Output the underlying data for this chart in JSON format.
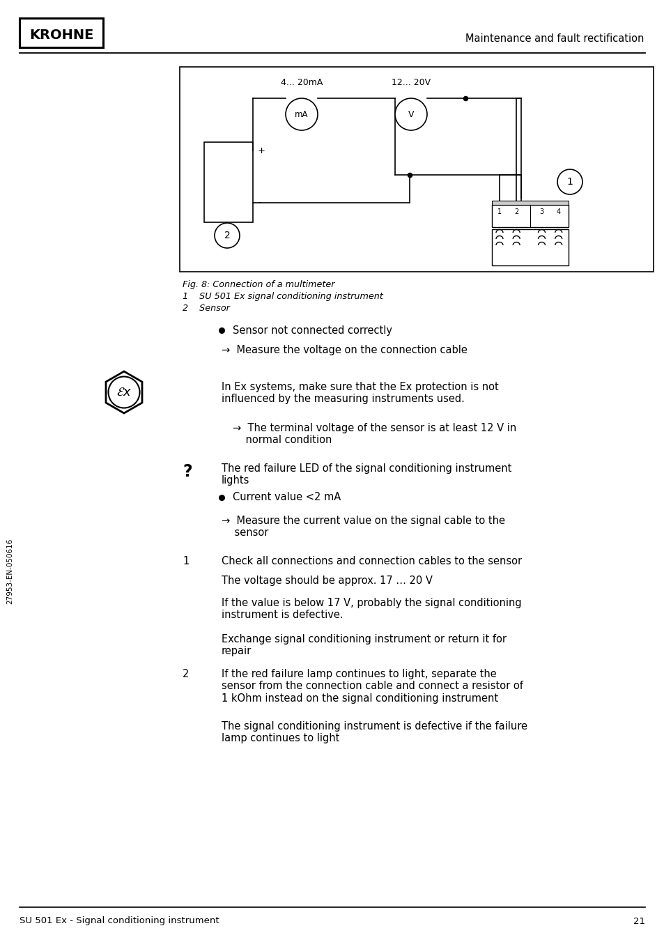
{
  "page_bg": "#ffffff",
  "header_logo_text": "KROHNE",
  "header_right_text": "Maintenance and fault rectification",
  "footer_left_text": "SU 501 Ex - Signal conditioning instrument",
  "footer_right_text": "21",
  "side_text": "27953-EN-050616",
  "fig_caption_line1": "Fig. 8: Connection of a multimeter",
  "fig_caption_line2": "1    SU 501 Ex signal conditioning instrument",
  "fig_caption_line3": "2    Sensor",
  "bullet1": "Sensor not connected correctly",
  "arrow1": "→  Measure the voltage on the connection cable",
  "warning_text": "In Ex systems, make sure that the Ex protection is not\ninfluenced by the measuring instruments used.",
  "arrow2": "→  The terminal voltage of the sensor is at least 12 V in\n    normal condition",
  "question_head": "The red failure LED of the signal conditioning instrument\nlights",
  "bullet2": "Current value <2 mA",
  "arrow3": "→  Measure the current value on the signal cable to the\n    sensor",
  "item1_num": "1",
  "item1_head": "Check all connections and connection cables to the sensor",
  "item1_p1": "The voltage should be approx. 17 … 20 V",
  "item1_p2": "If the value is below 17 V, probably the signal conditioning\ninstrument is defective.",
  "item1_p3": "Exchange signal conditioning instrument or return it for\nrepair",
  "item2_num": "2",
  "item2_head": "If the red failure lamp continues to light, separate the\nsensor from the connection cable and connect a resistor of\n1 kOhm instead on the signal conditioning instrument",
  "item2_p1": "The signal conditioning instrument is defective if the failure\nlamp continues to light"
}
